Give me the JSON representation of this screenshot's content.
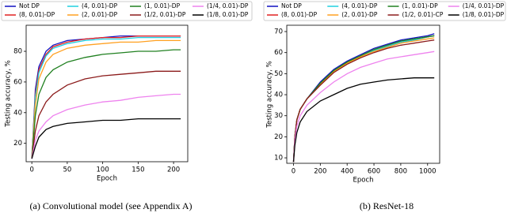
{
  "chart_data": [
    {
      "type": "line",
      "caption": "(a) Convolutional model (see Appendix A)",
      "xlabel": "Epoch",
      "ylabel": "Testing accuracy, %",
      "x": [
        0,
        5,
        10,
        20,
        30,
        50,
        75,
        100,
        125,
        150,
        175,
        200,
        210
      ],
      "xlim": [
        -8,
        220
      ],
      "ylim": [
        8,
        97
      ],
      "xticks": [
        0,
        50,
        100,
        150,
        200
      ],
      "yticks": [
        20,
        40,
        60,
        80
      ],
      "series": [
        {
          "name": "Not DP",
          "color": "#1010c0",
          "values": [
            10,
            55,
            70,
            80,
            84,
            87,
            88,
            89,
            90,
            90,
            90,
            90,
            90
          ]
        },
        {
          "name": "(8, 0.01)-DP",
          "color": "#e02020",
          "values": [
            10,
            52,
            68,
            78,
            83,
            86,
            88,
            89,
            89,
            90,
            90,
            90,
            90
          ]
        },
        {
          "name": "(4, 0.01)-DP",
          "color": "#20d0e0",
          "values": [
            10,
            50,
            66,
            77,
            82,
            85,
            87,
            88,
            88,
            89,
            89,
            89,
            89
          ]
        },
        {
          "name": "(2, 0.01)-DP",
          "color": "#ffa020",
          "values": [
            10,
            45,
            62,
            73,
            78,
            82,
            84,
            85,
            86,
            86,
            87,
            87,
            87
          ]
        },
        {
          "name": "(1, 0.01)-DP",
          "color": "#208020",
          "values": [
            10,
            38,
            52,
            63,
            68,
            73,
            76,
            78,
            79,
            80,
            80,
            81,
            81
          ]
        },
        {
          "name": "(1/2, 0.01)-DP",
          "color": "#8b1a1a",
          "values": [
            10,
            28,
            38,
            47,
            52,
            58,
            62,
            64,
            65,
            66,
            67,
            67,
            67
          ]
        },
        {
          "name": "(1/4, 0.01)-DP",
          "color": "#ee82ee",
          "values": [
            10,
            22,
            28,
            34,
            38,
            42,
            45,
            47,
            48,
            50,
            51,
            52,
            52
          ]
        },
        {
          "name": "(1/8, 0.01)-DP",
          "color": "#000000",
          "values": [
            10,
            18,
            24,
            29,
            31,
            33,
            34,
            35,
            35,
            36,
            36,
            36,
            36
          ]
        }
      ]
    },
    {
      "type": "line",
      "caption": "(b) ResNet-18",
      "xlabel": "Epoch",
      "ylabel": "Testing accuracy, %",
      "x": [
        0,
        10,
        25,
        50,
        100,
        200,
        300,
        400,
        500,
        600,
        700,
        800,
        900,
        1000,
        1050
      ],
      "xlim": [
        -50,
        1090
      ],
      "ylim": [
        7.4,
        73
      ],
      "xticks": [
        0,
        200,
        400,
        600,
        800,
        1000
      ],
      "yticks": [
        10,
        20,
        30,
        40,
        50,
        60,
        70
      ],
      "series": [
        {
          "name": "Not DP",
          "color": "#1010c0",
          "values": [
            8,
            20,
            28,
            33,
            38,
            46,
            52,
            56,
            59,
            62,
            64,
            66,
            67,
            68,
            69
          ]
        },
        {
          "name": "(8, 0.01)-DP",
          "color": "#e02020",
          "values": [
            8,
            20,
            28,
            33,
            38,
            45,
            51,
            55,
            58,
            61,
            63,
            65,
            66,
            67.5,
            68
          ]
        },
        {
          "name": "(4, 0.01)-DP",
          "color": "#20d0e0",
          "values": [
            8,
            20,
            28,
            33,
            38,
            45,
            51,
            55,
            58,
            61,
            63,
            65,
            66,
            67.5,
            68
          ]
        },
        {
          "name": "(2, 0.01)-DP",
          "color": "#ffa020",
          "values": [
            8,
            20,
            28,
            33,
            38,
            45,
            51,
            55,
            58,
            60.5,
            62.5,
            64.5,
            65.5,
            66.5,
            67
          ]
        },
        {
          "name": "(1, 0.01)-DP",
          "color": "#208020",
          "values": [
            8,
            20,
            28,
            33,
            38,
            45.5,
            51.5,
            55.5,
            58.5,
            61.5,
            63.5,
            65.5,
            66.5,
            67.5,
            68
          ]
        },
        {
          "name": "(1/2, 0.01)-CP",
          "color": "#8b1a1a",
          "values": [
            8,
            20,
            28,
            33,
            38,
            44.5,
            50.5,
            54.5,
            57.5,
            60,
            62,
            63.5,
            64.5,
            65.5,
            66
          ]
        },
        {
          "name": "(1/4, 0.01)-DP",
          "color": "#ee82ee",
          "values": [
            8,
            18,
            25,
            30,
            35,
            41,
            46,
            50,
            53,
            55,
            57,
            58,
            59,
            60,
            60.5
          ]
        },
        {
          "name": "(1/8, 0.01)-DP",
          "color": "#000000",
          "values": [
            8,
            16,
            22,
            27,
            32,
            37,
            40,
            43,
            45,
            46,
            47,
            47.5,
            48,
            48,
            48
          ]
        }
      ]
    }
  ]
}
